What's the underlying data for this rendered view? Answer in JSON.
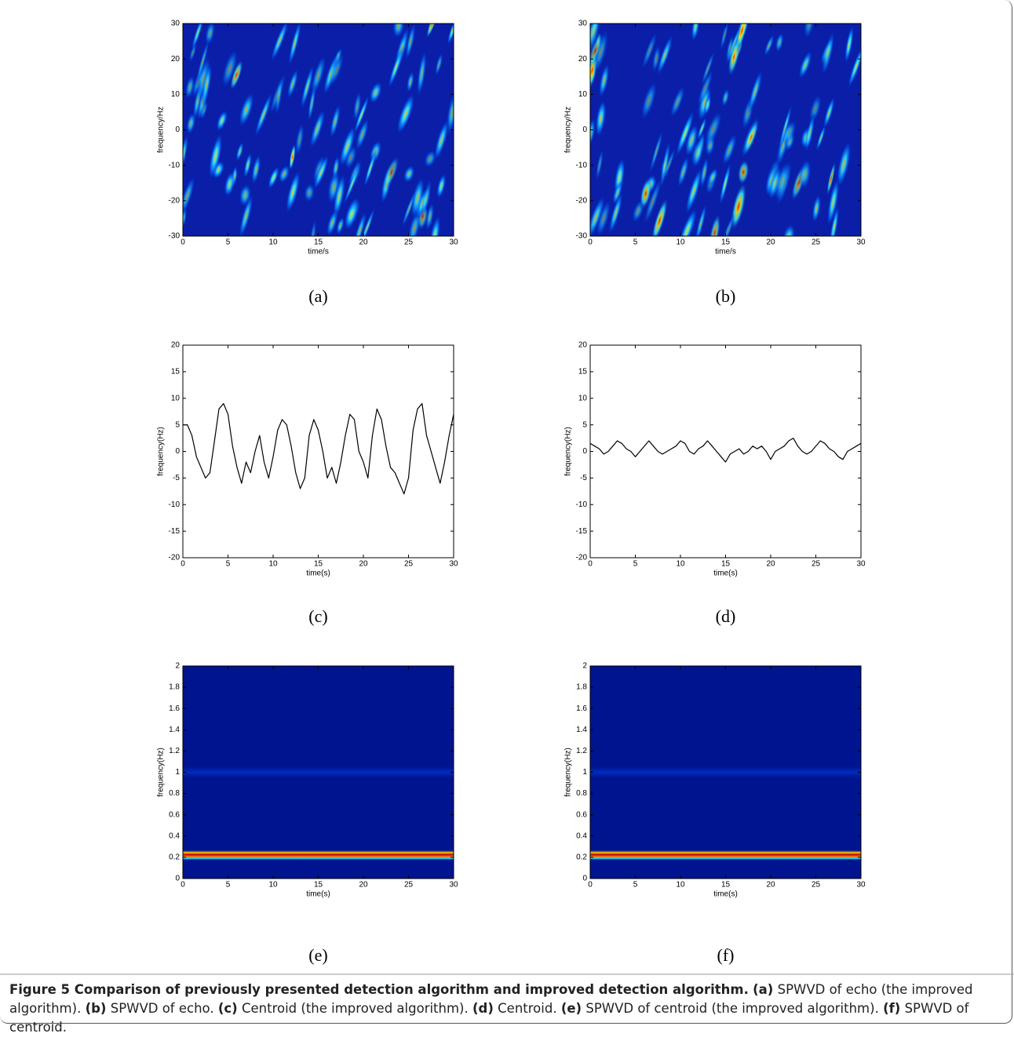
{
  "chart_data": [
    {
      "type": "heatmap",
      "label": "(a)",
      "xlabel": "time/s",
      "ylabel": "frequency/Hz",
      "xlim": [
        0,
        30
      ],
      "xticks": [
        0,
        5,
        10,
        15,
        20,
        25,
        30
      ],
      "ylim": [
        -30,
        30
      ],
      "yticks": [
        -30,
        -20,
        -10,
        0,
        10,
        20,
        30
      ]
    },
    {
      "type": "heatmap",
      "label": "(b)",
      "xlabel": "time/s",
      "ylabel": "frequency/Hz",
      "xlim": [
        0,
        30
      ],
      "xticks": [
        0,
        5,
        10,
        15,
        20,
        25,
        30
      ],
      "ylim": [
        -30,
        30
      ],
      "yticks": [
        -30,
        -20,
        -10,
        0,
        10,
        20,
        30
      ]
    },
    {
      "type": "line",
      "label": "(c)",
      "xlabel": "time(s)",
      "ylabel": "frequency(Hz)",
      "xlim": [
        0,
        30
      ],
      "xticks": [
        0,
        5,
        10,
        15,
        20,
        25,
        30
      ],
      "ylim": [
        -20,
        20
      ],
      "yticks": [
        -20,
        -15,
        -10,
        -5,
        0,
        5,
        10,
        15,
        20
      ],
      "color": "#000000",
      "x": [
        0,
        0.5,
        1,
        1.5,
        2,
        2.5,
        3,
        3.5,
        4,
        4.5,
        5,
        5.5,
        6,
        6.5,
        7,
        7.5,
        8,
        8.5,
        9,
        9.5,
        10,
        10.5,
        11,
        11.5,
        12,
        12.5,
        13,
        13.5,
        14,
        14.5,
        15,
        15.5,
        16,
        16.5,
        17,
        17.5,
        18,
        18.5,
        19,
        19.5,
        20,
        20.5,
        21,
        21.5,
        22,
        22.5,
        23,
        23.5,
        24,
        24.5,
        25,
        25.5,
        26,
        26.5,
        27,
        27.5,
        28,
        28.5,
        29,
        29.5,
        30
      ],
      "values": [
        5,
        5,
        3,
        -1,
        -3,
        -5,
        -4,
        2,
        8,
        9,
        7,
        1,
        -3,
        -6,
        -2,
        -4,
        0,
        3,
        -2,
        -5,
        -1,
        4,
        6,
        5,
        1,
        -4,
        -7,
        -5,
        3,
        6,
        4,
        0,
        -5,
        -3,
        -6,
        -2,
        3,
        7,
        6,
        0,
        -2,
        -5,
        3,
        8,
        6,
        1,
        -3,
        -4,
        -6,
        -8,
        -5,
        4,
        8,
        9,
        3,
        0,
        -3,
        -6,
        -2,
        3,
        7
      ]
    },
    {
      "type": "line",
      "label": "(d)",
      "xlabel": "time(s)",
      "ylabel": "frequency(Hz)",
      "xlim": [
        0,
        30
      ],
      "xticks": [
        0,
        5,
        10,
        15,
        20,
        25,
        30
      ],
      "ylim": [
        -20,
        20
      ],
      "yticks": [
        -20,
        -15,
        -10,
        -5,
        0,
        5,
        10,
        15,
        20
      ],
      "color": "#000000",
      "x": [
        0,
        0.5,
        1,
        1.5,
        2,
        2.5,
        3,
        3.5,
        4,
        4.5,
        5,
        5.5,
        6,
        6.5,
        7,
        7.5,
        8,
        8.5,
        9,
        9.5,
        10,
        10.5,
        11,
        11.5,
        12,
        12.5,
        13,
        13.5,
        14,
        14.5,
        15,
        15.5,
        16,
        16.5,
        17,
        17.5,
        18,
        18.5,
        19,
        19.5,
        20,
        20.5,
        21,
        21.5,
        22,
        22.5,
        23,
        23.5,
        24,
        24.5,
        25,
        25.5,
        26,
        26.5,
        27,
        27.5,
        28,
        28.5,
        29,
        29.5,
        30
      ],
      "values": [
        1.5,
        1,
        0.5,
        -0.5,
        0,
        1,
        2,
        1.5,
        0.5,
        0,
        -1,
        0,
        1,
        2,
        1,
        0,
        -0.5,
        0,
        0.5,
        1,
        2,
        1.5,
        0,
        -0.5,
        0.5,
        1,
        2,
        1,
        0,
        -1,
        -2,
        -0.5,
        0,
        0.5,
        -0.5,
        0,
        1,
        0.5,
        1,
        0,
        -1.5,
        0,
        0.5,
        1,
        2,
        2.5,
        1,
        0,
        -0.5,
        0,
        1,
        2,
        1.5,
        0.5,
        0,
        -1,
        -1.5,
        0,
        0.5,
        1,
        1.5
      ]
    },
    {
      "type": "heatmap",
      "label": "(e)",
      "xlabel": "time(s)",
      "ylabel": "frequency(Hz)",
      "xlim": [
        0,
        30
      ],
      "xticks": [
        0,
        5,
        10,
        15,
        20,
        25,
        30
      ],
      "ylim": [
        0,
        2
      ],
      "yticks": [
        0,
        0.2,
        0.4,
        0.6,
        0.8,
        1,
        1.2,
        1.4,
        1.6,
        1.8,
        2
      ]
    },
    {
      "type": "heatmap",
      "label": "(f)",
      "xlabel": "time(s)",
      "ylabel": "frequency(Hz)",
      "xlim": [
        0,
        30
      ],
      "xticks": [
        0,
        5,
        10,
        15,
        20,
        25,
        30
      ],
      "ylim": [
        0,
        2
      ],
      "yticks": [
        0,
        0.2,
        0.4,
        0.6,
        0.8,
        1,
        1.2,
        1.4,
        1.6,
        1.8,
        2
      ]
    }
  ],
  "caption": [
    {
      "text": "Figure 5 Comparison of previously presented detection algorithm and improved detection algorithm.",
      "bold": true
    },
    {
      "text": "(a)",
      "bold": true
    },
    {
      "text": "SPWVD of echo (the improved algorithm).",
      "bold": false
    },
    {
      "text": "(b)",
      "bold": true
    },
    {
      "text": "SPWVD of echo.",
      "bold": false
    },
    {
      "text": "(c)",
      "bold": true
    },
    {
      "text": "Centroid (the improved algorithm).",
      "bold": false
    },
    {
      "text": "(d)",
      "bold": true
    },
    {
      "text": "Centroid.",
      "bold": false
    },
    {
      "text": "(e)",
      "bold": true
    },
    {
      "text": "SPWVD of centroid (the improved algorithm).",
      "bold": false
    },
    {
      "text": "(f)",
      "bold": true
    },
    {
      "text": "SPWVD of centroid.",
      "bold": false
    }
  ]
}
